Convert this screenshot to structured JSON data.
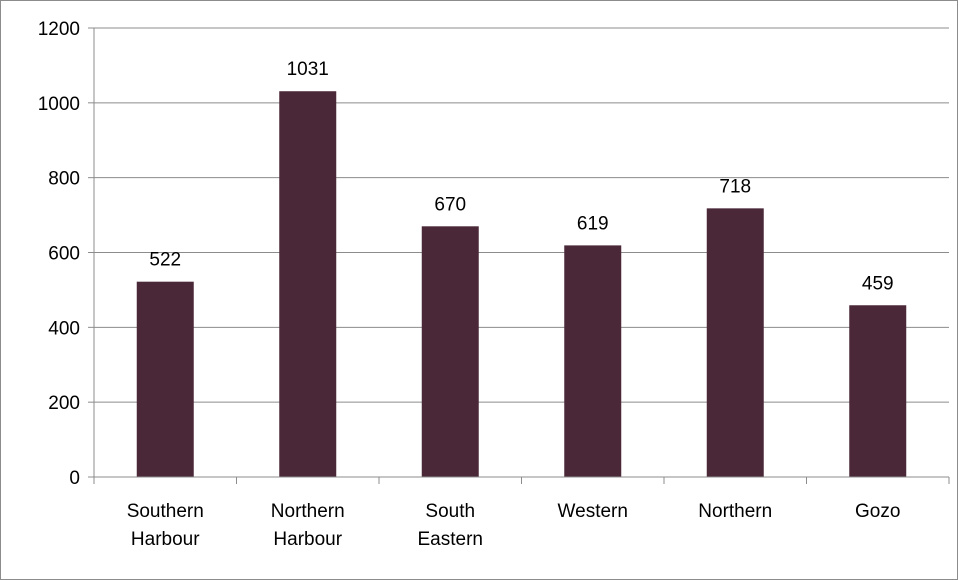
{
  "chart_data": {
    "type": "bar",
    "categories": [
      [
        "Southern",
        "Harbour"
      ],
      [
        "Northern",
        "Harbour"
      ],
      [
        "South",
        "Eastern"
      ],
      [
        "Western"
      ],
      [
        "Northern"
      ],
      [
        "Gozo"
      ]
    ],
    "values": [
      522,
      1031,
      670,
      619,
      718,
      459
    ],
    "data_labels": [
      "522",
      "1031",
      "670",
      "619",
      "718",
      "459"
    ],
    "ylim": [
      0,
      1200
    ],
    "yticks": [
      0,
      200,
      400,
      600,
      800,
      1000,
      1200
    ],
    "ytick_labels": [
      "0",
      "200",
      "400",
      "600",
      "800",
      "1000",
      "1200"
    ],
    "grid": true,
    "legend": "none",
    "bar_color": "#4a2838",
    "grid_color": "#8c8c8c",
    "title": "",
    "xlabel": "",
    "ylabel": ""
  }
}
